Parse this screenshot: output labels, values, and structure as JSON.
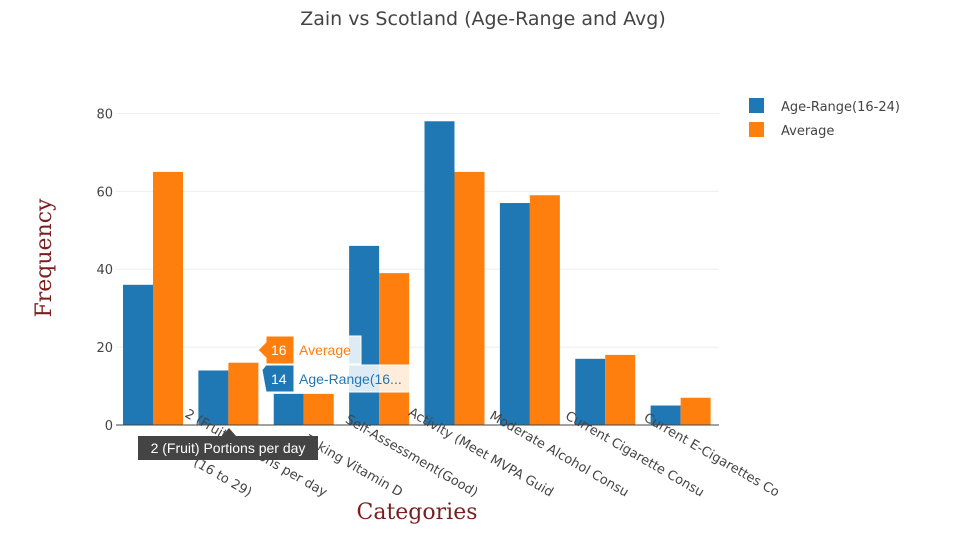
{
  "chart_data": {
    "type": "bar",
    "title": "Zain vs Scotland (Age-Range and Avg)",
    "xlabel": "Categories",
    "ylabel": "Frequency",
    "ylim": [
      0,
      85
    ],
    "yticks": [
      "0",
      "20",
      "40",
      "60",
      "80"
    ],
    "grid": true,
    "legend_position": "top-right",
    "tick_labels": [
      "(16 to 29)",
      "2 (Fruit) Portions per day",
      "Taking Vitamin D",
      "Self-Assessment(Good)",
      "Activity (Meet MVPA Guid",
      "Moderate Alcohol Consu",
      "Current Cigarette Consu",
      "Current E-Cigarettes Co"
    ],
    "series": [
      {
        "name": "Age-Range(16-24)",
        "color": "#1f77b4",
        "values": [
          36,
          14,
          8,
          46,
          78,
          57,
          17,
          5
        ]
      },
      {
        "name": "Average",
        "color": "#ff7f0e",
        "values": [
          65,
          16,
          8,
          39,
          65,
          59,
          18,
          7
        ]
      }
    ]
  },
  "hover": {
    "category_label": "2 (Fruit) Portions per day",
    "average_value": "16",
    "average_name": "Average",
    "age_value": "14",
    "age_name": "Age-Range(16..."
  }
}
